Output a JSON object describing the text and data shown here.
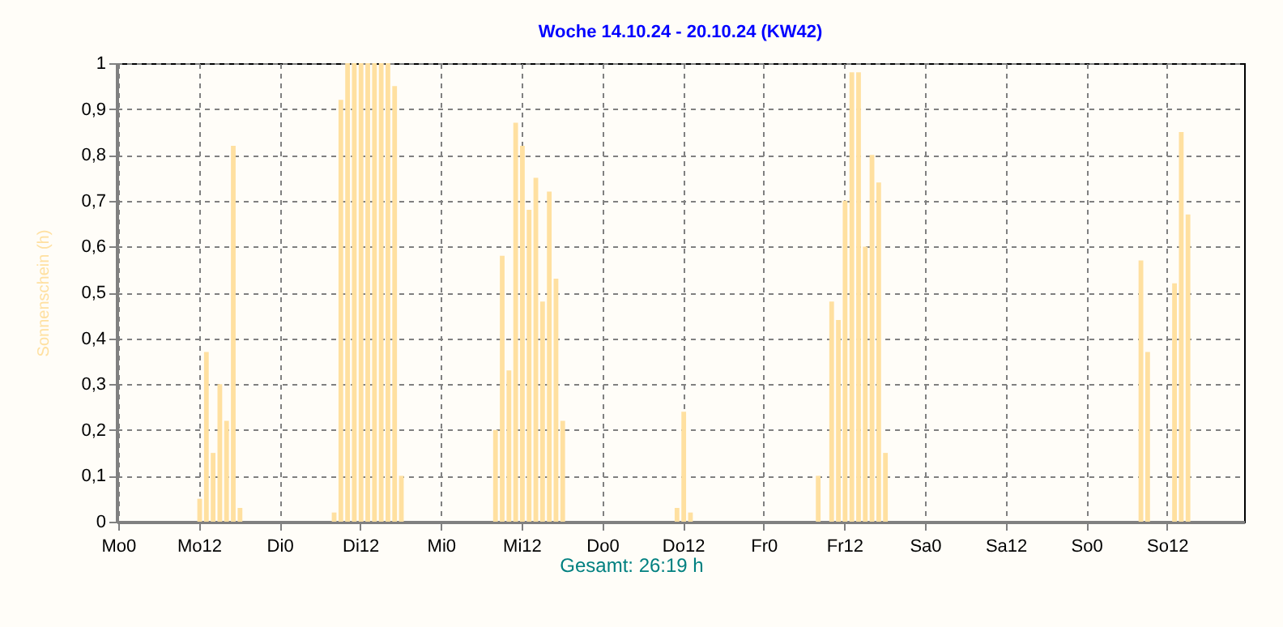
{
  "chart_data": {
    "type": "bar",
    "title": "Woche 14.10.24 - 20.10.24 (KW42)",
    "ylabel": "Sonnenschein  (h)",
    "annotations": [
      "Gesamt: 26:19 h"
    ],
    "color": "#ffe0a0",
    "categories": [
      "Mo0",
      null,
      null,
      null,
      null,
      null,
      null,
      null,
      null,
      null,
      null,
      null,
      "Mo12",
      null,
      null,
      null,
      null,
      null,
      null,
      null,
      null,
      null,
      null,
      null,
      "Di0",
      null,
      null,
      null,
      null,
      null,
      null,
      null,
      null,
      null,
      null,
      null,
      "Di12",
      null,
      null,
      null,
      null,
      null,
      null,
      null,
      null,
      null,
      null,
      null,
      "Mi0",
      null,
      null,
      null,
      null,
      null,
      null,
      null,
      null,
      null,
      null,
      null,
      "Mi12",
      null,
      null,
      null,
      null,
      null,
      null,
      null,
      null,
      null,
      null,
      null,
      "Do0",
      null,
      null,
      null,
      null,
      null,
      null,
      null,
      null,
      null,
      null,
      null,
      "Do12",
      null,
      null,
      null,
      null,
      null,
      null,
      null,
      null,
      null,
      null,
      null,
      "Fr0",
      null,
      null,
      null,
      null,
      null,
      null,
      null,
      null,
      null,
      null,
      null,
      "Fr12",
      null,
      null,
      null,
      null,
      null,
      null,
      null,
      null,
      null,
      null,
      null,
      "Sa0",
      null,
      null,
      null,
      null,
      null,
      null,
      null,
      null,
      null,
      null,
      null,
      "Sa12",
      null,
      null,
      null,
      null,
      null,
      null,
      null,
      null,
      null,
      null,
      null,
      "So0",
      null,
      null,
      null,
      null,
      null,
      null,
      null,
      null,
      null,
      null,
      null,
      "So12",
      null,
      null,
      null,
      null,
      null,
      null,
      null,
      null,
      null,
      null,
      null
    ],
    "values": [
      0,
      0,
      0,
      0,
      0,
      0,
      0,
      0,
      0,
      0,
      0,
      0,
      0.05,
      0.37,
      0.15,
      0.3,
      0.22,
      0.82,
      0.03,
      0,
      0,
      0,
      0,
      0,
      0,
      0,
      0,
      0,
      0,
      0,
      0,
      0,
      0.02,
      0.92,
      1,
      1,
      1,
      1,
      1,
      1,
      1,
      0.95,
      0.1,
      0,
      0,
      0,
      0,
      0,
      0,
      0,
      0,
      0,
      0,
      0,
      0,
      0,
      0.2,
      0.58,
      0.33,
      0.87,
      0.82,
      0.68,
      0.75,
      0.48,
      0.72,
      0.53,
      0.22,
      0,
      0,
      0,
      0,
      0,
      0,
      0,
      0,
      0,
      0,
      0,
      0,
      0,
      0,
      0,
      0,
      0.03,
      0.24,
      0.02,
      0,
      0,
      0,
      0,
      0,
      0,
      0,
      0,
      0,
      0,
      0,
      0,
      0,
      0,
      0,
      0,
      0,
      0,
      0.1,
      0,
      0.48,
      0.44,
      0.7,
      0.98,
      0.98,
      0.6,
      0.8,
      0.74,
      0.15,
      0,
      0,
      0,
      0,
      0,
      0,
      0,
      0,
      0,
      0,
      0,
      0,
      0,
      0,
      0,
      0,
      0,
      0,
      0,
      0,
      0,
      0,
      0,
      0,
      0,
      0,
      0,
      0,
      0,
      0,
      0,
      0,
      0,
      0,
      0,
      0,
      0,
      0.57,
      0.37,
      0,
      0,
      0,
      0.52,
      0.85,
      0.67,
      0,
      0,
      0,
      0,
      0,
      0,
      0,
      0
    ],
    "ylim": [
      0,
      1
    ],
    "yticks": [
      0,
      {
        "value": 0.1,
        "label": "0,1"
      },
      {
        "value": 0.2,
        "label": "0,2"
      },
      {
        "value": 0.3,
        "label": "0,3"
      },
      {
        "value": 0.4,
        "label": "0,4"
      },
      {
        "value": 0.5,
        "label": "0,5"
      },
      {
        "value": 0.6,
        "label": "0,6"
      },
      {
        "value": 0.7,
        "label": "0,7"
      },
      {
        "value": 0.8,
        "label": "0,8"
      },
      {
        "value": 0.9,
        "label": "0,9"
      },
      1
    ],
    "grid": true
  }
}
